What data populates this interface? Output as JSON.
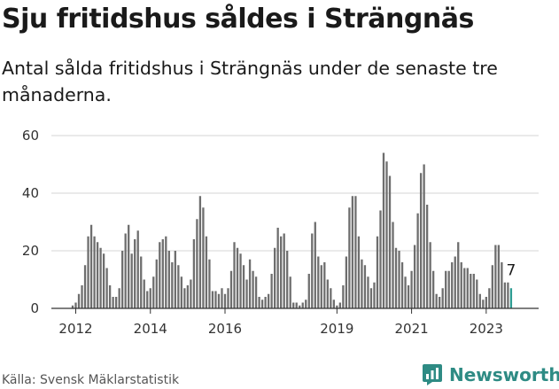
{
  "header": {
    "title": "Sju fritidshus såldes i Strängnäs",
    "subtitle": "Antal sålda fritidshus i Strängnäs under de senaste tre månaderna."
  },
  "footer": {
    "source": "Källa: Svensk Mäklarstatistik",
    "brand": "Newsworthy"
  },
  "colors": {
    "bar": "#6e6e6e",
    "highlight": "#2e9c92",
    "grid": "#d6d6d6",
    "brand": "#2e8b84"
  },
  "chart_data": {
    "type": "bar",
    "title": "Sju fritidshus såldes i Strängnäs",
    "subtitle": "Antal sålda fritidshus i Strängnäs under de senaste tre månaderna.",
    "xlabel": "",
    "ylabel": "",
    "ylim": [
      0,
      60
    ],
    "yticks": [
      0,
      20,
      40,
      60
    ],
    "xticks": [
      "2012",
      "2014",
      "2016",
      "2019",
      "2021",
      "2023"
    ],
    "grid": true,
    "legend": "none",
    "start": "2011-12",
    "frequency": "monthly, rolling three-month sum",
    "values": [
      1,
      2,
      5,
      8,
      15,
      25,
      29,
      25,
      23,
      21,
      19,
      14,
      8,
      4,
      4,
      7,
      20,
      26,
      29,
      19,
      24,
      27,
      18,
      10,
      6,
      7,
      11,
      17,
      23,
      24,
      25,
      20,
      16,
      20,
      15,
      11,
      7,
      8,
      10,
      24,
      31,
      39,
      35,
      25,
      17,
      6,
      6,
      5,
      7,
      5,
      7,
      13,
      23,
      21,
      19,
      15,
      10,
      17,
      13,
      11,
      4,
      3,
      4,
      5,
      12,
      21,
      28,
      25,
      26,
      20,
      11,
      2,
      2,
      1,
      2,
      3,
      12,
      26,
      30,
      18,
      15,
      16,
      10,
      7,
      3,
      1,
      2,
      8,
      18,
      35,
      39,
      39,
      25,
      17,
      15,
      11,
      7,
      9,
      25,
      34,
      54,
      51,
      46,
      30,
      21,
      20,
      16,
      11,
      8,
      13,
      22,
      33,
      47,
      50,
      36,
      23,
      13,
      5,
      4,
      7,
      13,
      13,
      16,
      18,
      23,
      16,
      14,
      14,
      12,
      12,
      10,
      5,
      3,
      4,
      7,
      15,
      22,
      22,
      16,
      9,
      9,
      7
    ],
    "last_value_label": "7",
    "highlight": "last bar"
  }
}
